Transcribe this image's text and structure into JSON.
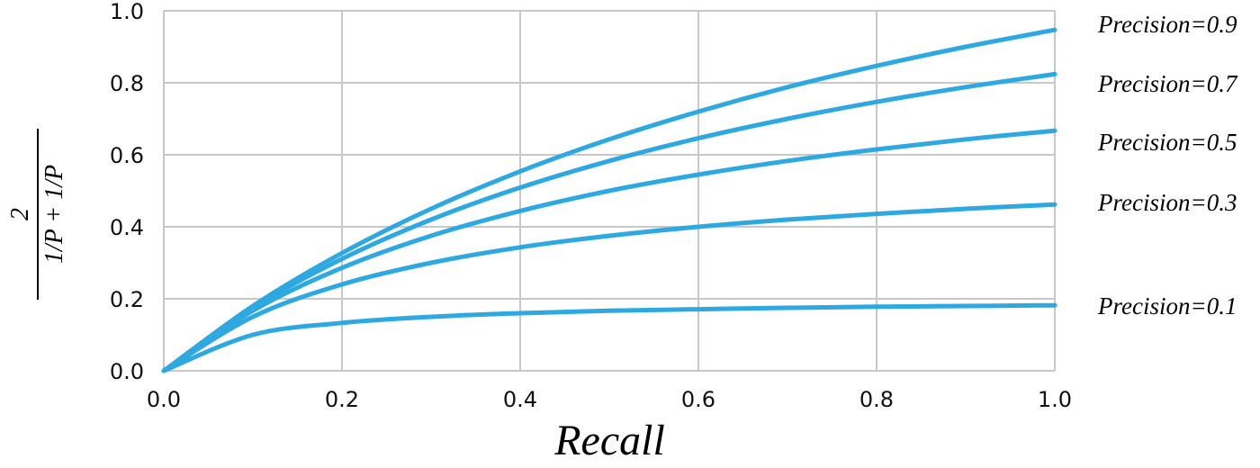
{
  "chart_data": {
    "type": "line",
    "title": "",
    "xlabel": "Recall",
    "ylabel": {
      "numerator": "2",
      "denominator": "1/P + 1/P"
    },
    "xlim": [
      0,
      1
    ],
    "ylim": [
      0,
      1
    ],
    "grid": true,
    "xticks": [
      "0.0",
      "0.2",
      "0.4",
      "0.6",
      "0.8",
      "1.0"
    ],
    "yticks": [
      "0.0",
      "0.2",
      "0.4",
      "0.6",
      "0.8",
      "1.0"
    ],
    "line_color": "#2ea8e0",
    "x": [
      0,
      0.1,
      0.2,
      0.3,
      0.4,
      0.5,
      0.6,
      0.7,
      0.8,
      0.9,
      1.0
    ],
    "series": [
      {
        "name": "Precision=0.9",
        "values": [
          0,
          0.18,
          0.327,
          0.45,
          0.554,
          0.643,
          0.72,
          0.788,
          0.847,
          0.9,
          0.947
        ]
      },
      {
        "name": "Precision=0.7",
        "values": [
          0,
          0.175,
          0.311,
          0.42,
          0.509,
          0.583,
          0.646,
          0.7,
          0.747,
          0.788,
          0.824
        ]
      },
      {
        "name": "Precision=0.5",
        "values": [
          0,
          0.167,
          0.286,
          0.375,
          0.444,
          0.5,
          0.545,
          0.583,
          0.615,
          0.643,
          0.667
        ]
      },
      {
        "name": "Precision=0.3",
        "values": [
          0,
          0.15,
          0.24,
          0.3,
          0.343,
          0.375,
          0.4,
          0.42,
          0.436,
          0.45,
          0.462
        ]
      },
      {
        "name": "Precision=0.1",
        "values": [
          0,
          0.1,
          0.133,
          0.15,
          0.16,
          0.167,
          0.171,
          0.175,
          0.178,
          0.18,
          0.182
        ]
      }
    ]
  }
}
